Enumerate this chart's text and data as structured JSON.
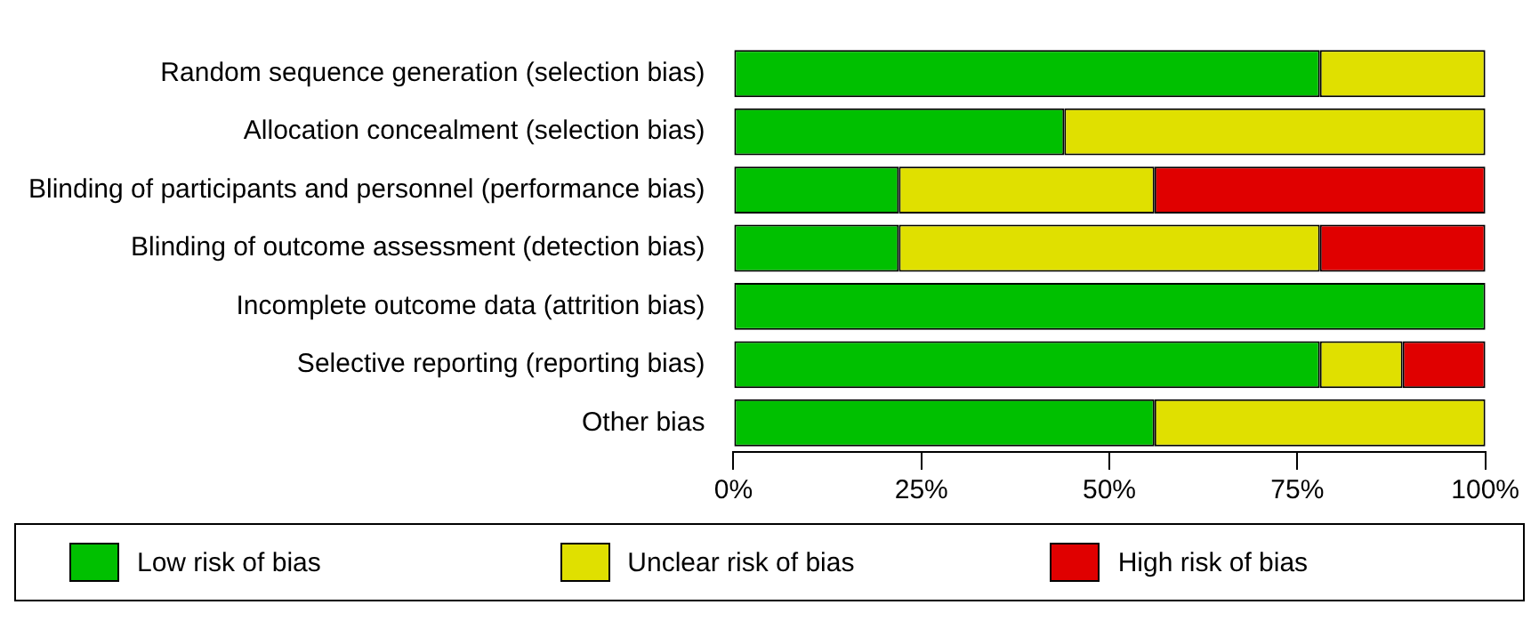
{
  "chart_data": {
    "type": "bar",
    "orientation": "horizontal",
    "stacked": true,
    "categories": [
      "Random sequence generation (selection bias)",
      "Allocation concealment (selection bias)",
      "Blinding of participants and personnel (performance bias)",
      "Blinding of outcome assessment (detection bias)",
      "Incomplete outcome data (attrition bias)",
      "Selective reporting (reporting bias)",
      "Other bias"
    ],
    "series": [
      {
        "name": "Low risk of bias",
        "color": "#00c000",
        "values": [
          78,
          44,
          22,
          22,
          100,
          78,
          56
        ]
      },
      {
        "name": "Unclear risk of bias",
        "color": "#e0e000",
        "values": [
          22,
          56,
          34,
          56,
          0,
          11,
          44
        ]
      },
      {
        "name": "High risk of bias",
        "color": "#e00000",
        "values": [
          0,
          0,
          44,
          22,
          0,
          11,
          0
        ]
      }
    ],
    "xlim": [
      0,
      100
    ],
    "xticks": [
      {
        "value": 0,
        "label": "0%"
      },
      {
        "value": 25,
        "label": "25%"
      },
      {
        "value": 50,
        "label": "50%"
      },
      {
        "value": 75,
        "label": "75%"
      },
      {
        "value": 100,
        "label": "100%"
      }
    ],
    "grid": false,
    "legend": "bottom"
  }
}
